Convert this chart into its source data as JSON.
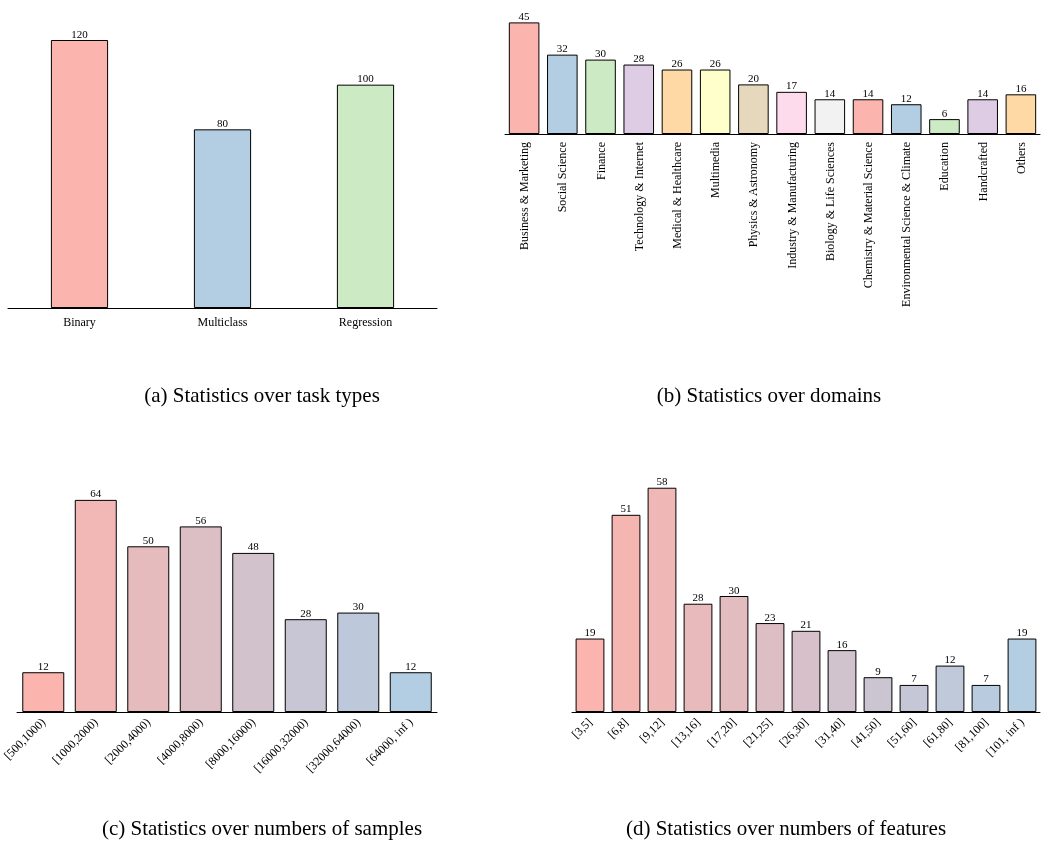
{
  "chart_data": [
    {
      "type": "bar",
      "title": "(a) Statistics over task types",
      "categories": [
        "Binary",
        "Multiclass",
        "Regression"
      ],
      "values": [
        120,
        80,
        100
      ],
      "colors": [
        "#fbb4ae",
        "#b3cde3",
        "#ccebc5"
      ],
      "data_labels": true
    },
    {
      "type": "bar",
      "title": "(b) Statistics over domains",
      "categories": [
        "Business & Marketing",
        "Social Science",
        "Finance",
        "Technology & Internet",
        "Medical & Healthcare",
        "Multimedia",
        "Physics & Astronomy",
        "Industry & Manufacturing",
        "Biology & Life Sciences",
        "Chemistry & Material Science",
        "Environmental Science & Climate",
        "Education",
        "Handcrafted",
        "Others"
      ],
      "values": [
        45,
        32,
        30,
        28,
        26,
        26,
        20,
        17,
        14,
        14,
        12,
        6,
        14,
        16
      ],
      "colors": [
        "#fbb4ae",
        "#b3cde3",
        "#ccebc5",
        "#decbe4",
        "#fed9a6",
        "#ffffcc",
        "#e5d8bd",
        "#fddaec",
        "#f2f2f2",
        "#fbb4ae",
        "#b3cde3",
        "#ccebc5",
        "#decbe4",
        "#fed9a6"
      ],
      "data_labels": true
    },
    {
      "type": "bar",
      "title": "(c) Statistics over numbers of samples",
      "categories": [
        "[500,1000)",
        "[1000,2000)",
        "[2000,4000)",
        "[4000,8000)",
        "[8000,16000)",
        "[16000,32000)",
        "[32000,64000)",
        "[64000, inf )"
      ],
      "values": [
        12,
        64,
        50,
        56,
        48,
        28,
        30,
        12
      ],
      "colors": [
        "#fbb4ae",
        "#f1b8b6",
        "#e6bbbd",
        "#dcbfc5",
        "#d2c2cc",
        "#c8c6d4",
        "#bdc9db",
        "#b3cde3"
      ],
      "data_labels": true
    },
    {
      "type": "bar",
      "title": "(d) Statistics over numbers of features",
      "categories": [
        "[3,5]",
        "[6,8]",
        "[9,12]",
        "[13,16]",
        "[17,20]",
        "[21,25]",
        "[26,30]",
        "[31,40]",
        "[41,50]",
        "[51,60]",
        "[61,80]",
        "[81,100]",
        "[101, inf )"
      ],
      "values": [
        19,
        51,
        58,
        28,
        30,
        23,
        21,
        16,
        9,
        7,
        12,
        7,
        19
      ],
      "colors": [
        "#fbb4ae",
        "#f5b6b2",
        "#efb8b7",
        "#e9babb",
        "#e3bcc0",
        "#ddbec4",
        "#d7c0c9",
        "#d1c3cd",
        "#cbc5d1",
        "#c5c7d6",
        "#bfc9da",
        "#b9cbdf",
        "#b3cde3"
      ],
      "data_labels": true
    }
  ]
}
